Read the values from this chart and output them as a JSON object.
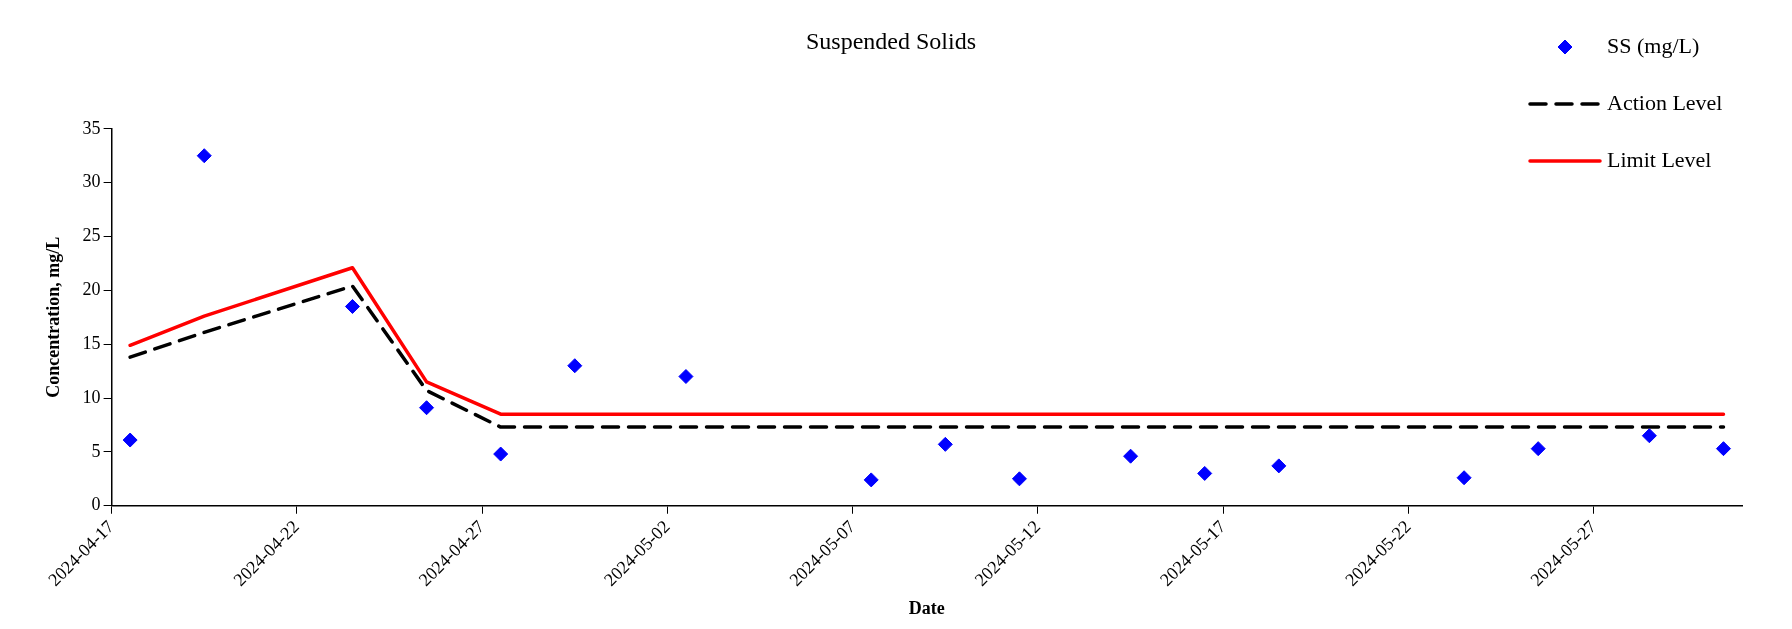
{
  "chart_data": {
    "type": "scatter",
    "title": "Suspended Solids",
    "xlabel": "Date",
    "ylabel": "Concentration, mg/L",
    "x": [
      "2024-04-17T12:00",
      "2024-04-19T12:00",
      "2024-04-23T12:00",
      "2024-04-25T12:00",
      "2024-04-27T12:00",
      "2024-04-29T12:00",
      "2024-05-02T12:00",
      "2024-05-07T12:00",
      "2024-05-09T12:00",
      "2024-05-11T12:00",
      "2024-05-14T12:00",
      "2024-05-16T12:00",
      "2024-05-18T12:00",
      "2024-05-23T12:00",
      "2024-05-25T12:00",
      "2024-05-28T12:00",
      "2024-05-30T12:00"
    ],
    "series": [
      {
        "name": "SS (mg/L)",
        "color": "#0000ff",
        "marker": "diamond",
        "values": [
          6.1,
          32.5,
          18.5,
          9.1,
          4.8,
          13.0,
          12.0,
          2.4,
          5.7,
          2.5,
          4.6,
          3.0,
          3.7,
          2.6,
          5.3,
          6.5,
          5.3
        ]
      },
      {
        "name": "Action Level",
        "type": "line",
        "color": "#000000",
        "marker": "none",
        "line_style": "dashed",
        "x": [
          "2024-04-17T12:00",
          "2024-04-19T12:00",
          "2024-04-23T12:00",
          "2024-04-25T12:00",
          "2024-04-27T12:00",
          "2024-05-30T12:00"
        ],
        "values": [
          13.8,
          16.1,
          20.4,
          10.7,
          7.3,
          7.3
        ]
      },
      {
        "name": "Limit Level",
        "type": "line",
        "color": "#ff0000",
        "marker": "none",
        "line_style": "solid",
        "x": [
          "2024-04-17T12:00",
          "2024-04-19T12:00",
          "2024-04-23T12:00",
          "2024-04-25T12:00",
          "2024-04-27T12:00",
          "2024-05-30T12:00"
        ],
        "values": [
          14.9,
          17.6,
          22.1,
          11.5,
          8.5,
          8.5
        ]
      }
    ],
    "xlim": [
      "2024-04-17",
      "2024-05-31"
    ],
    "xticks": [
      "2024-04-17",
      "2024-04-22",
      "2024-04-27",
      "2024-05-02",
      "2024-05-07",
      "2024-05-12",
      "2024-05-17",
      "2024-05-22",
      "2024-05-27"
    ],
    "ylim": [
      0,
      35
    ],
    "yticks": [
      0,
      5,
      10,
      15,
      20,
      25,
      30,
      35
    ],
    "grid": false,
    "legend": "top right"
  }
}
